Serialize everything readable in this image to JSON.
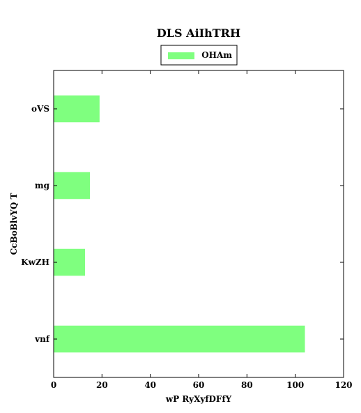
{
  "chart_data": {
    "type": "bar",
    "orientation": "horizontal",
    "title": "DLS AiIhTRH",
    "xlabel": "wP RyXyfDFfY",
    "ylabel": "CcBoBlvYQ T",
    "categories": [
      "oVS",
      "mg",
      "KwZH",
      "vnf"
    ],
    "series": [
      {
        "name": "OHAm",
        "values": [
          19,
          15,
          13,
          104
        ],
        "color": "#7fff7f"
      }
    ],
    "xlim": [
      0,
      120
    ],
    "xticks": [
      0,
      20,
      40,
      60,
      80,
      100,
      120
    ],
    "grid": false,
    "legend": "top-center"
  }
}
